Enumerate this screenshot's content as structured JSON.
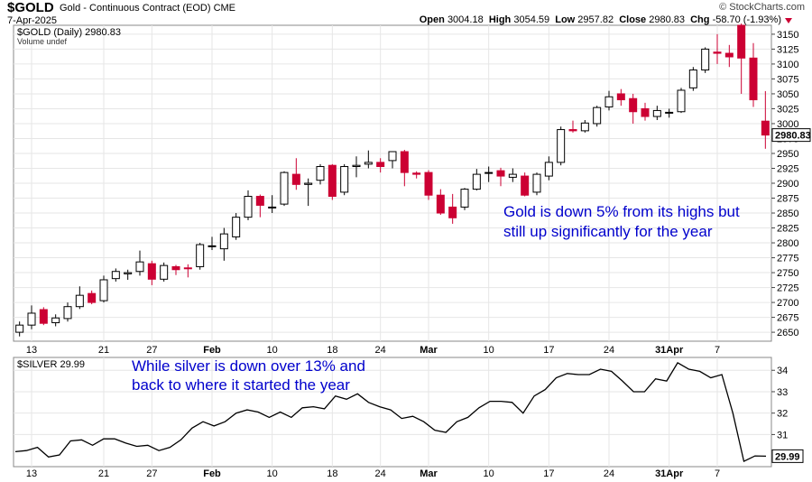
{
  "header": {
    "symbol": "$GOLD",
    "description": "Gold - Continuous Contract (EOD)",
    "exchange": "CME",
    "date": "7-Apr-2025",
    "credit": "© StockCharts.com",
    "open_label": "Open",
    "open_value": "3004.18",
    "high_label": "High",
    "high_value": "3054.59",
    "low_label": "Low",
    "low_value": "2957.82",
    "close_label": "Close",
    "close_value": "2980.83",
    "chg_label": "Chg",
    "chg_value": "-58.70 (-1.93%)",
    "down_color": "#cc0033"
  },
  "chart_data": [
    {
      "type": "candlestick",
      "legend": "$GOLD (Daily) 2980.83",
      "volume_note": "Volume undef",
      "last_value_label": "2980.83",
      "ylim": [
        2635,
        3165
      ],
      "y_ticks": [
        2650,
        2675,
        2700,
        2725,
        2750,
        2775,
        2800,
        2825,
        2850,
        2875,
        2900,
        2925,
        2950,
        2975,
        3000,
        3025,
        3050,
        3075,
        3100,
        3125,
        3150
      ],
      "x_tick_labels": [
        {
          "label": "13",
          "index": 1
        },
        {
          "label": "21",
          "index": 7
        },
        {
          "label": "27",
          "index": 11
        },
        {
          "label": "Feb",
          "index": 16
        },
        {
          "label": "10",
          "index": 21
        },
        {
          "label": "18",
          "index": 26
        },
        {
          "label": "24",
          "index": 30
        },
        {
          "label": "Mar",
          "index": 34
        },
        {
          "label": "10",
          "index": 39
        },
        {
          "label": "17",
          "index": 44
        },
        {
          "label": "24",
          "index": 49
        },
        {
          "label": "31Apr",
          "index": 54
        },
        {
          "label": "7",
          "index": 58
        }
      ],
      "annotation": [
        "Gold is down 5% from its highs but",
        "still up significantly for the year"
      ],
      "up_color": "#ffffff",
      "down_color": "#cc0033",
      "candles": [
        {
          "o": 2650,
          "h": 2668,
          "l": 2643,
          "c": 2662
        },
        {
          "o": 2662,
          "h": 2695,
          "l": 2655,
          "c": 2682
        },
        {
          "o": 2688,
          "h": 2692,
          "l": 2662,
          "c": 2665
        },
        {
          "o": 2666,
          "h": 2680,
          "l": 2660,
          "c": 2674
        },
        {
          "o": 2673,
          "h": 2700,
          "l": 2668,
          "c": 2693
        },
        {
          "o": 2693,
          "h": 2727,
          "l": 2689,
          "c": 2712
        },
        {
          "o": 2715,
          "h": 2720,
          "l": 2697,
          "c": 2700
        },
        {
          "o": 2703,
          "h": 2745,
          "l": 2700,
          "c": 2738
        },
        {
          "o": 2740,
          "h": 2757,
          "l": 2735,
          "c": 2752
        },
        {
          "o": 2748,
          "h": 2755,
          "l": 2738,
          "c": 2750
        },
        {
          "o": 2752,
          "h": 2787,
          "l": 2745,
          "c": 2768
        },
        {
          "o": 2765,
          "h": 2770,
          "l": 2729,
          "c": 2739
        },
        {
          "o": 2739,
          "h": 2767,
          "l": 2735,
          "c": 2762
        },
        {
          "o": 2760,
          "h": 2763,
          "l": 2746,
          "c": 2755
        },
        {
          "o": 2758,
          "h": 2764,
          "l": 2742,
          "c": 2757
        },
        {
          "o": 2760,
          "h": 2800,
          "l": 2755,
          "c": 2797
        },
        {
          "o": 2795,
          "h": 2810,
          "l": 2788,
          "c": 2795
        },
        {
          "o": 2790,
          "h": 2825,
          "l": 2770,
          "c": 2815
        },
        {
          "o": 2810,
          "h": 2850,
          "l": 2805,
          "c": 2843
        },
        {
          "o": 2843,
          "h": 2888,
          "l": 2838,
          "c": 2878
        },
        {
          "o": 2878,
          "h": 2881,
          "l": 2843,
          "c": 2863
        },
        {
          "o": 2860,
          "h": 2880,
          "l": 2850,
          "c": 2860
        },
        {
          "o": 2865,
          "h": 2920,
          "l": 2862,
          "c": 2918
        },
        {
          "o": 2915,
          "h": 2942,
          "l": 2889,
          "c": 2898
        },
        {
          "o": 2898,
          "h": 2908,
          "l": 2862,
          "c": 2900
        },
        {
          "o": 2905,
          "h": 2932,
          "l": 2898,
          "c": 2928
        },
        {
          "o": 2930,
          "h": 2932,
          "l": 2872,
          "c": 2878
        },
        {
          "o": 2885,
          "h": 2932,
          "l": 2880,
          "c": 2928
        },
        {
          "o": 2928,
          "h": 2945,
          "l": 2910,
          "c": 2930
        },
        {
          "o": 2932,
          "h": 2955,
          "l": 2925,
          "c": 2935
        },
        {
          "o": 2935,
          "h": 2942,
          "l": 2918,
          "c": 2928
        },
        {
          "o": 2938,
          "h": 2953,
          "l": 2925,
          "c": 2953
        },
        {
          "o": 2953,
          "h": 2956,
          "l": 2895,
          "c": 2918
        },
        {
          "o": 2917,
          "h": 2920,
          "l": 2908,
          "c": 2915
        },
        {
          "o": 2918,
          "h": 2922,
          "l": 2872,
          "c": 2880
        },
        {
          "o": 2880,
          "h": 2890,
          "l": 2847,
          "c": 2850
        },
        {
          "o": 2860,
          "h": 2882,
          "l": 2832,
          "c": 2842
        },
        {
          "o": 2860,
          "h": 2892,
          "l": 2855,
          "c": 2890
        },
        {
          "o": 2890,
          "h": 2924,
          "l": 2888,
          "c": 2915
        },
        {
          "o": 2918,
          "h": 2928,
          "l": 2902,
          "c": 2918
        },
        {
          "o": 2921,
          "h": 2926,
          "l": 2895,
          "c": 2912
        },
        {
          "o": 2910,
          "h": 2925,
          "l": 2902,
          "c": 2915
        },
        {
          "o": 2912,
          "h": 2918,
          "l": 2878,
          "c": 2880
        },
        {
          "o": 2885,
          "h": 2918,
          "l": 2880,
          "c": 2915
        },
        {
          "o": 2912,
          "h": 2945,
          "l": 2905,
          "c": 2935
        },
        {
          "o": 2935,
          "h": 2995,
          "l": 2930,
          "c": 2990
        },
        {
          "o": 2990,
          "h": 3005,
          "l": 2985,
          "c": 2988
        },
        {
          "o": 2988,
          "h": 3006,
          "l": 2985,
          "c": 3001
        },
        {
          "o": 3000,
          "h": 3030,
          "l": 2995,
          "c": 3027
        },
        {
          "o": 3028,
          "h": 3055,
          "l": 3022,
          "c": 3045
        },
        {
          "o": 3050,
          "h": 3058,
          "l": 3030,
          "c": 3040
        },
        {
          "o": 3042,
          "h": 3050,
          "l": 3000,
          "c": 3020
        },
        {
          "o": 3025,
          "h": 3035,
          "l": 3005,
          "c": 3012
        },
        {
          "o": 3012,
          "h": 3030,
          "l": 3006,
          "c": 3022
        },
        {
          "o": 3018,
          "h": 3025,
          "l": 3010,
          "c": 3019
        },
        {
          "o": 3020,
          "h": 3060,
          "l": 3018,
          "c": 3056
        },
        {
          "o": 3060,
          "h": 3095,
          "l": 3055,
          "c": 3090
        },
        {
          "o": 3090,
          "h": 3128,
          "l": 3085,
          "c": 3125
        },
        {
          "o": 3120,
          "h": 3150,
          "l": 3100,
          "c": 3118
        },
        {
          "o": 3118,
          "h": 3132,
          "l": 3095,
          "c": 3112
        },
        {
          "o": 3165,
          "h": 3168,
          "l": 3050,
          "c": 3110
        },
        {
          "o": 3110,
          "h": 3135,
          "l": 3028,
          "c": 3040
        },
        {
          "o": 3004.18,
          "h": 3054.59,
          "l": 2957.82,
          "c": 2980.83
        }
      ]
    },
    {
      "type": "line",
      "legend": "$SILVER 29.99",
      "last_value_label": "29.99",
      "ylim": [
        29.5,
        34.6
      ],
      "y_ticks": [
        31,
        32,
        33,
        34
      ],
      "annotation": [
        "While silver is down over 13% and",
        "back to where it started the year"
      ],
      "line_color": "#000000",
      "values": [
        30.2,
        30.25,
        30.4,
        29.95,
        30.05,
        30.7,
        30.75,
        30.5,
        30.8,
        30.8,
        30.6,
        30.45,
        30.5,
        30.25,
        30.4,
        30.75,
        31.3,
        31.6,
        31.4,
        31.6,
        32.0,
        32.15,
        32.05,
        31.8,
        32.05,
        31.8,
        32.25,
        32.3,
        32.2,
        32.8,
        32.65,
        32.9,
        32.5,
        32.3,
        32.15,
        31.75,
        31.85,
        31.6,
        31.2,
        31.1,
        31.6,
        31.8,
        32.25,
        32.55,
        32.55,
        32.5,
        32.0,
        32.8,
        33.1,
        33.65,
        33.85,
        33.8,
        33.8,
        34.05,
        33.95,
        33.5,
        33.0,
        33.0,
        33.6,
        33.5,
        34.35,
        34.05,
        33.95,
        33.65,
        33.8,
        32.0,
        29.75,
        30.0,
        29.99
      ]
    }
  ]
}
